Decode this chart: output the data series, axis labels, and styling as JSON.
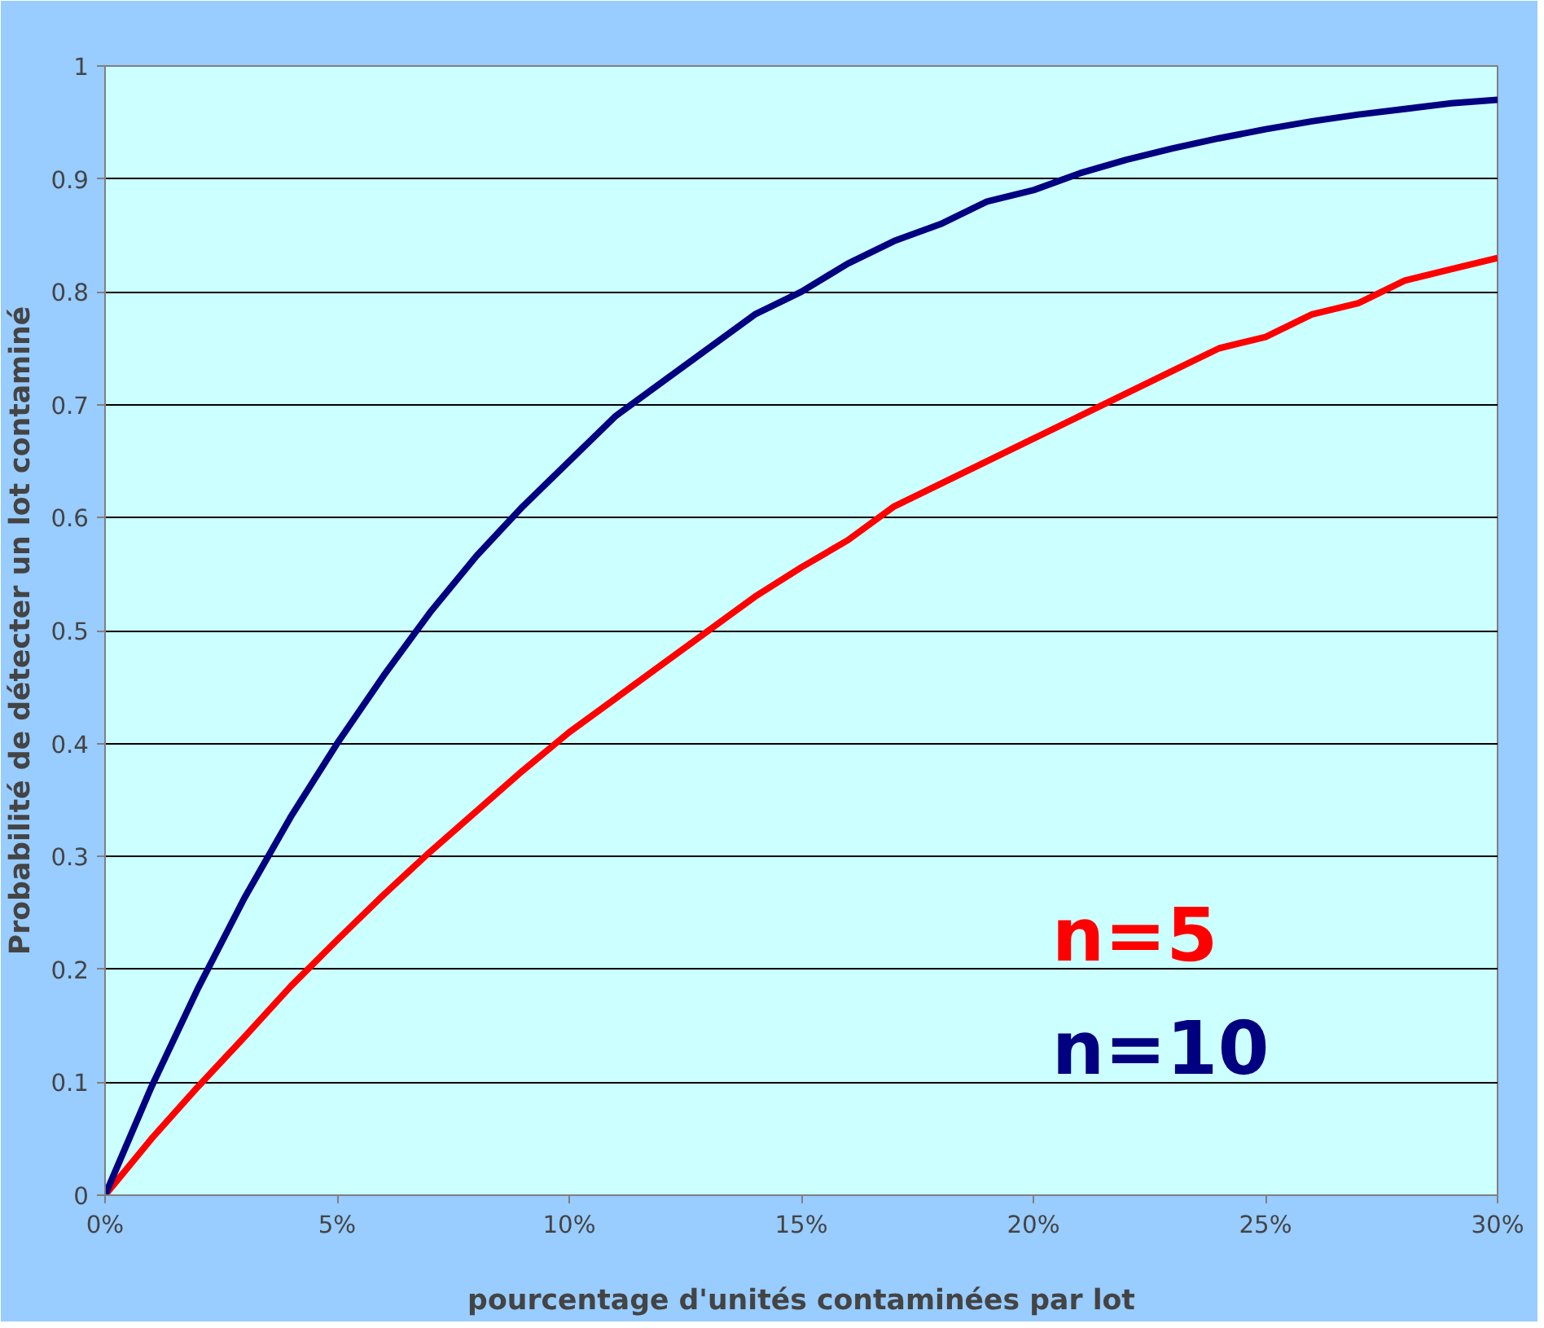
{
  "chart_data": {
    "type": "line",
    "xlabel": "pourcentage d'unités contaminées par lot",
    "ylabel": "Probabilité de détecter un lot contaminé",
    "x": [
      0,
      1,
      2,
      3,
      4,
      5,
      6,
      7,
      8,
      9,
      10,
      11,
      12,
      13,
      14,
      15,
      16,
      17,
      18,
      19,
      20,
      21,
      22,
      23,
      24,
      25,
      26,
      27,
      28,
      29,
      30
    ],
    "series": [
      {
        "name": "n=5",
        "color": "#ff0000",
        "values": [
          0,
          0.05,
          0.096,
          0.14,
          0.185,
          0.226,
          0.266,
          0.304,
          0.34,
          0.376,
          0.41,
          0.44,
          0.47,
          0.5,
          0.53,
          0.556,
          0.58,
          0.61,
          0.63,
          0.65,
          0.67,
          0.69,
          0.71,
          0.73,
          0.75,
          0.76,
          0.78,
          0.79,
          0.81,
          0.82,
          0.83
        ]
      },
      {
        "name": "n=10",
        "color": "#000080",
        "values": [
          0,
          0.096,
          0.183,
          0.263,
          0.335,
          0.4,
          0.46,
          0.516,
          0.566,
          0.61,
          0.65,
          0.69,
          0.72,
          0.75,
          0.78,
          0.8,
          0.825,
          0.845,
          0.86,
          0.88,
          0.89,
          0.905,
          0.917,
          0.927,
          0.936,
          0.944,
          0.951,
          0.957,
          0.962,
          0.967,
          0.97
        ]
      }
    ],
    "xlim": [
      0,
      30
    ],
    "xticks": [
      {
        "value": 0,
        "label": "0%"
      },
      {
        "value": 5,
        "label": "5%"
      },
      {
        "value": 10,
        "label": "10%"
      },
      {
        "value": 15,
        "label": "15%"
      },
      {
        "value": 20,
        "label": "20%"
      },
      {
        "value": 25,
        "label": "25%"
      },
      {
        "value": 30,
        "label": "30%"
      }
    ],
    "ylim": [
      0,
      1
    ],
    "yticks": [
      0,
      0.1,
      0.2,
      0.3,
      0.4,
      0.5,
      0.6,
      0.7,
      0.8,
      0.9,
      1
    ],
    "grid": "y",
    "legend": "bottom right",
    "marker": "none",
    "line_style": "solid"
  }
}
